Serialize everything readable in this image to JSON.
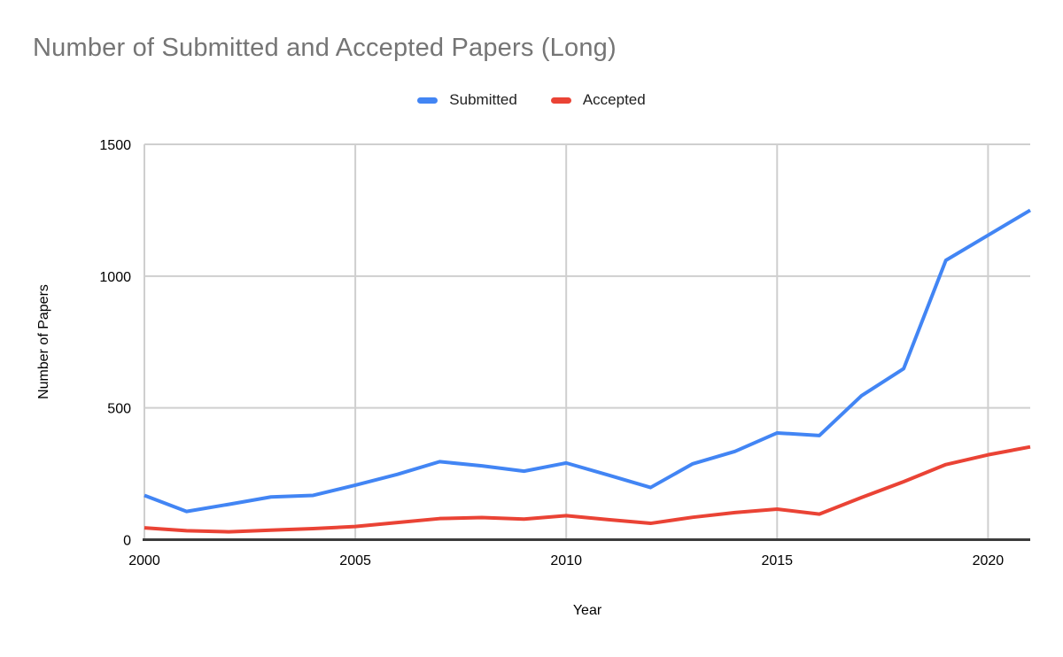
{
  "title": "Number of Submitted and Accepted Papers (Long)",
  "chart_data": {
    "type": "line",
    "title": "Number of Submitted and Accepted Papers (Long)",
    "xlabel": "Year",
    "ylabel": "Number of Papers",
    "x": [
      2000,
      2001,
      2002,
      2003,
      2004,
      2005,
      2006,
      2007,
      2008,
      2009,
      2010,
      2011,
      2012,
      2013,
      2014,
      2015,
      2016,
      2017,
      2018,
      2019,
      2020,
      2021
    ],
    "series": [
      {
        "name": "Submitted",
        "color": "#4285f4",
        "values": [
          168,
          107,
          134,
          162,
          168,
          207,
          248,
          296,
          280,
          260,
          291,
          245,
          198,
          288,
          335,
          405,
          395,
          546,
          649,
          1060,
          1155,
          1250
        ]
      },
      {
        "name": "Accepted",
        "color": "#ea4335",
        "values": [
          45,
          34,
          30,
          36,
          42,
          50,
          65,
          80,
          84,
          78,
          91,
          76,
          62,
          85,
          103,
          116,
          97,
          160,
          220,
          285,
          322,
          352
        ]
      }
    ],
    "xlim": [
      2000,
      2021
    ],
    "ylim": [
      0,
      1500
    ],
    "xticks": [
      2000,
      2005,
      2010,
      2015,
      2020
    ],
    "yticks": [
      0,
      500,
      1000,
      1500
    ],
    "grid": true,
    "legend_position": "top",
    "colors": {
      "title_text": "#757575",
      "axis_text": "#000000",
      "legend_text": "#212121",
      "gridline": "#cfcfcf",
      "axis_line": "#3c3c3c",
      "background": "#ffffff"
    }
  }
}
